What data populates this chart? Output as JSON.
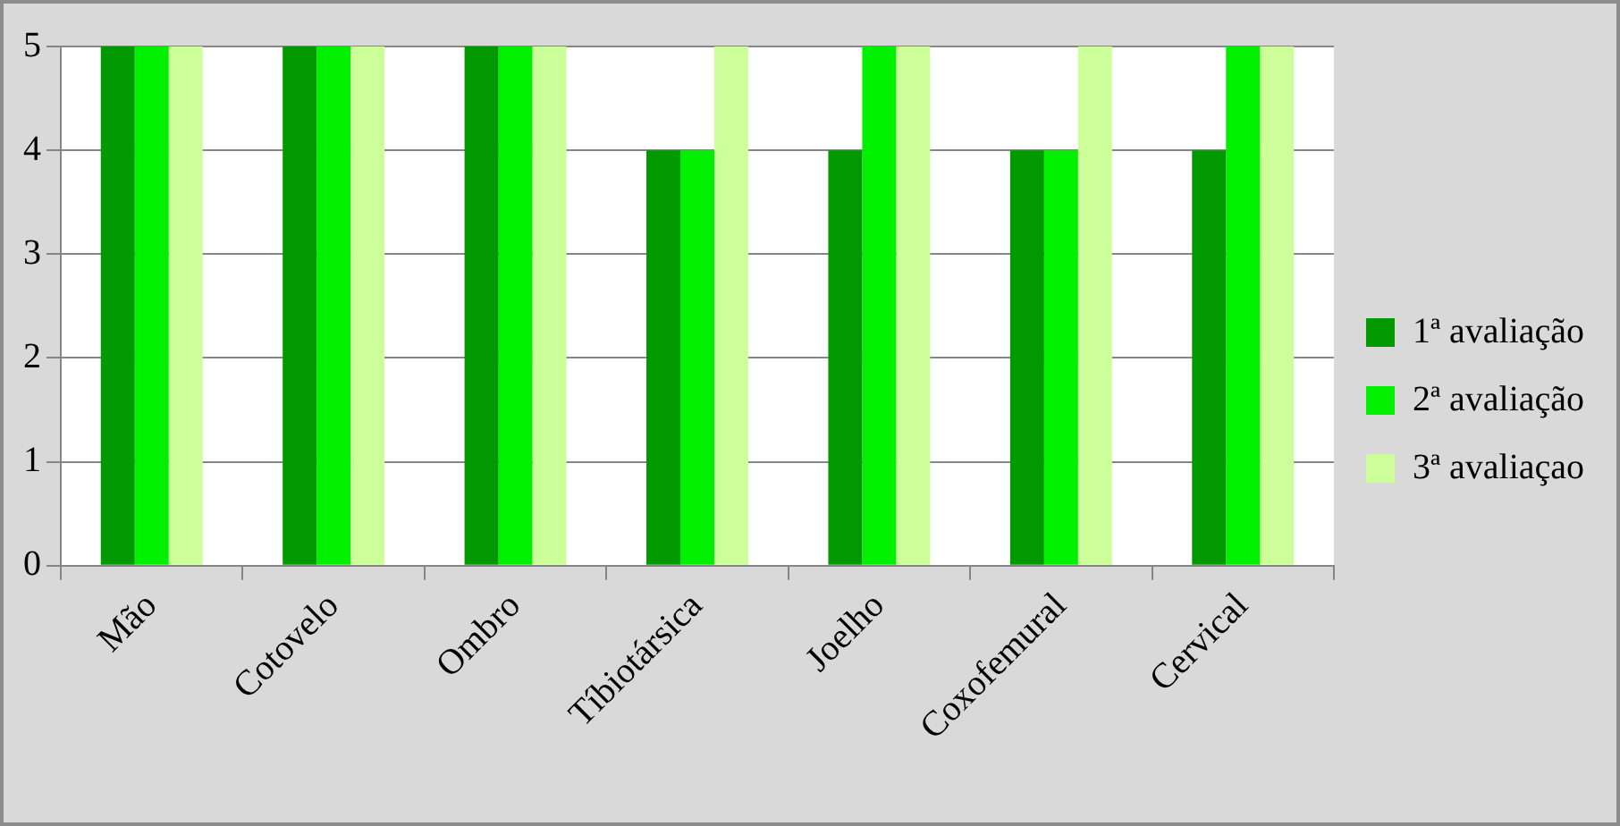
{
  "chart_data": {
    "type": "bar",
    "categories": [
      "Mão",
      "Cotovelo",
      "Ombro",
      "Tíbiotársica",
      "Joelho",
      "Coxofemural",
      "Cervical"
    ],
    "series": [
      {
        "name": "1ª avaliação",
        "color": "#009a00",
        "values": [
          5,
          5,
          5,
          4,
          4,
          4,
          4
        ]
      },
      {
        "name": "2ª avaliação",
        "color": "#00f000",
        "values": [
          5,
          5,
          5,
          4,
          5,
          4,
          5
        ]
      },
      {
        "name": "3ª avaliaçao",
        "color": "#ccff99",
        "values": [
          5,
          5,
          5,
          5,
          5,
          5,
          5
        ]
      }
    ],
    "ylim": [
      0,
      5
    ],
    "yticks": [
      0,
      1,
      2,
      3,
      4,
      5
    ],
    "grid": "y",
    "legend": "right"
  }
}
